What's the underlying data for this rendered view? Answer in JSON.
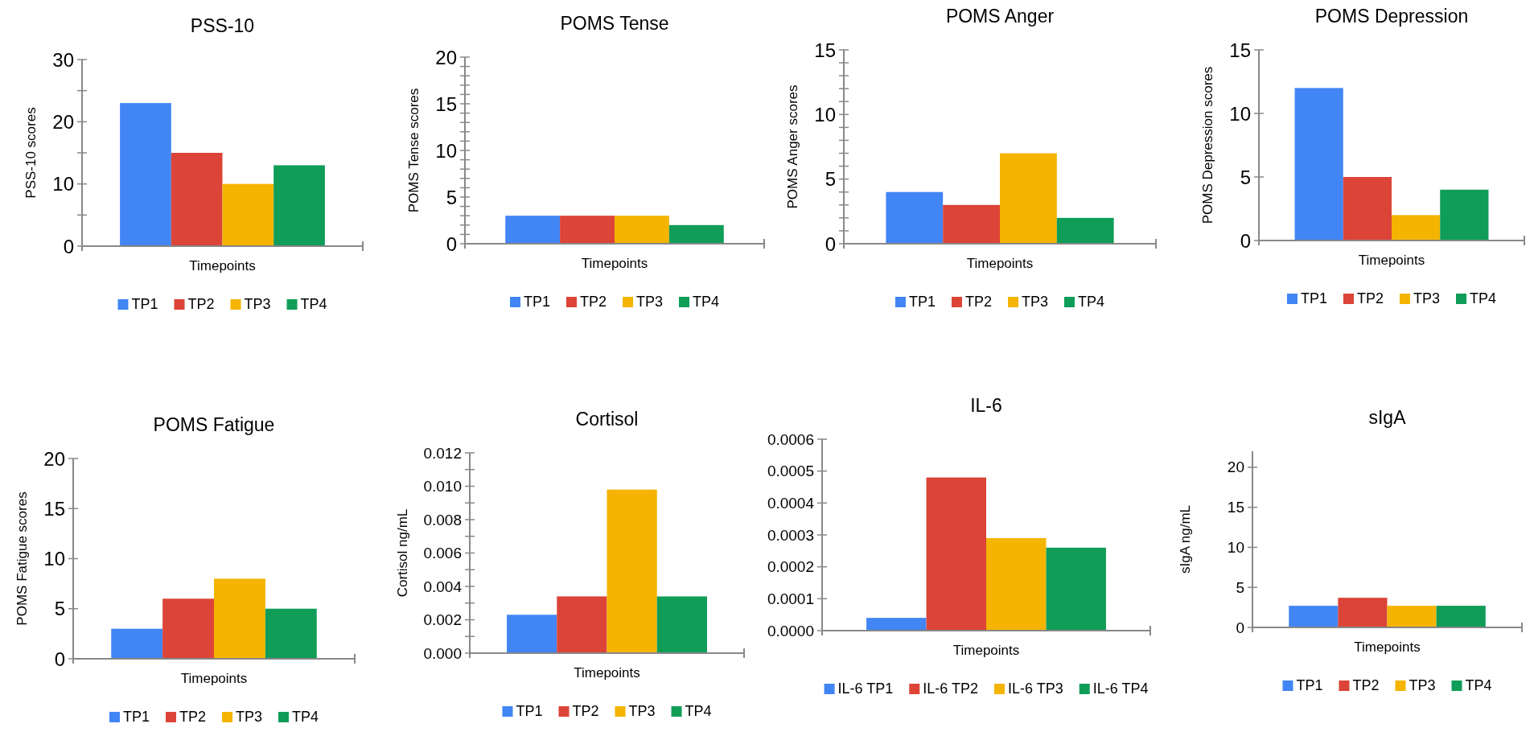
{
  "chart_data": [
    {
      "type": "bar",
      "title": "PSS-10",
      "ylabel": "PSS-10 scores",
      "xlabel": "Timepoints",
      "categories": [
        null
      ],
      "tick_labels": "y",
      "legend": "bottom",
      "grid": false,
      "ylim": [
        0,
        30
      ],
      "yticks": [
        0,
        {
          "value": 5,
          "label": null
        },
        10,
        {
          "value": 15,
          "label": null
        },
        20,
        {
          "value": 25,
          "label": null
        },
        30
      ],
      "series": [
        {
          "name": "TP1",
          "color": "#4285f4",
          "values": [
            23
          ]
        },
        {
          "name": "TP2",
          "color": "#db4437",
          "values": [
            15
          ]
        },
        {
          "name": "TP3",
          "color": "#f4b400",
          "values": [
            10
          ]
        },
        {
          "name": "TP4",
          "color": "#0f9d58",
          "values": [
            13
          ]
        }
      ]
    },
    {
      "type": "bar",
      "title": "POMS Tense",
      "ylabel": "POMS Tense scores",
      "xlabel": "Timepoints",
      "categories": [
        null
      ],
      "tick_labels": "y",
      "legend": "bottom",
      "grid": false,
      "ylim": [
        0,
        20
      ],
      "yticks": [
        0,
        {
          "value": 1,
          "label": null
        },
        {
          "value": 2,
          "label": null
        },
        {
          "value": 3,
          "label": null
        },
        {
          "value": 4,
          "label": null
        },
        5,
        {
          "value": 6,
          "label": null
        },
        {
          "value": 7,
          "label": null
        },
        {
          "value": 8,
          "label": null
        },
        {
          "value": 9,
          "label": null
        },
        10,
        {
          "value": 11,
          "label": null
        },
        {
          "value": 12,
          "label": null
        },
        {
          "value": 13,
          "label": null
        },
        {
          "value": 14,
          "label": null
        },
        15,
        {
          "value": 16,
          "label": null
        },
        {
          "value": 17,
          "label": null
        },
        {
          "value": 18,
          "label": null
        },
        {
          "value": 19,
          "label": null
        },
        20
      ],
      "series": [
        {
          "name": "TP1",
          "color": "#4285f4",
          "values": [
            3
          ]
        },
        {
          "name": "TP2",
          "color": "#db4437",
          "values": [
            3
          ]
        },
        {
          "name": "TP3",
          "color": "#f4b400",
          "values": [
            3
          ]
        },
        {
          "name": "TP4",
          "color": "#0f9d58",
          "values": [
            2
          ]
        }
      ]
    },
    {
      "type": "bar",
      "title": "POMS Anger",
      "ylabel": "POMS Anger scores",
      "xlabel": "Timepoints",
      "categories": [
        null
      ],
      "tick_labels": "y",
      "legend": "bottom",
      "grid": false,
      "ylim": [
        0,
        15
      ],
      "yticks": [
        0,
        {
          "value": 1,
          "label": null
        },
        {
          "value": 2,
          "label": null
        },
        {
          "value": 3,
          "label": null
        },
        {
          "value": 4,
          "label": null
        },
        5,
        {
          "value": 6,
          "label": null
        },
        {
          "value": 7,
          "label": null
        },
        {
          "value": 8,
          "label": null
        },
        {
          "value": 9,
          "label": null
        },
        10,
        {
          "value": 11,
          "label": null
        },
        {
          "value": 12,
          "label": null
        },
        {
          "value": 13,
          "label": null
        },
        {
          "value": 14,
          "label": null
        },
        15
      ],
      "series": [
        {
          "name": "TP1",
          "color": "#4285f4",
          "values": [
            4
          ]
        },
        {
          "name": "TP2",
          "color": "#db4437",
          "values": [
            3
          ]
        },
        {
          "name": "TP3",
          "color": "#f4b400",
          "values": [
            7
          ]
        },
        {
          "name": "TP4",
          "color": "#0f9d58",
          "values": [
            2
          ]
        }
      ]
    },
    {
      "type": "bar",
      "title": "POMS Depression",
      "ylabel": "POMS Depression scores",
      "xlabel": "Timepoints",
      "categories": [
        null
      ],
      "tick_labels": "y",
      "legend": "bottom",
      "grid": false,
      "ylim": [
        0,
        15
      ],
      "yticks": [
        0,
        5,
        10,
        15
      ],
      "series": [
        {
          "name": "TP1",
          "color": "#4285f4",
          "values": [
            12
          ]
        },
        {
          "name": "TP2",
          "color": "#db4437",
          "values": [
            5
          ]
        },
        {
          "name": "TP3",
          "color": "#f4b400",
          "values": [
            2
          ]
        },
        {
          "name": "TP4",
          "color": "#0f9d58",
          "values": [
            4
          ]
        }
      ]
    },
    {
      "type": "bar",
      "title": "POMS Fatigue",
      "ylabel": "POMS Fatigue scores",
      "xlabel": "Timepoints",
      "categories": [
        null
      ],
      "tick_labels": "y",
      "legend": "bottom",
      "grid": false,
      "ylim": [
        0,
        20
      ],
      "yticks": [
        0,
        5,
        10,
        15,
        20
      ],
      "series": [
        {
          "name": "TP1",
          "color": "#4285f4",
          "values": [
            3
          ]
        },
        {
          "name": "TP2",
          "color": "#db4437",
          "values": [
            6
          ]
        },
        {
          "name": "TP3",
          "color": "#f4b400",
          "values": [
            8
          ]
        },
        {
          "name": "TP4",
          "color": "#0f9d58",
          "values": [
            5
          ]
        }
      ]
    },
    {
      "type": "bar",
      "title": "Cortisol",
      "ylabel": "Cortisol ng/mL",
      "xlabel": "Timepoints",
      "categories": [
        null
      ],
      "tick_labels": "y",
      "legend": "bottom",
      "grid": false,
      "ylim": [
        0,
        0.012
      ],
      "yticks": [
        {
          "value": 0,
          "label": "0.000"
        },
        {
          "value": 0.001,
          "label": null
        },
        {
          "value": 0.002,
          "label": "0.002"
        },
        {
          "value": 0.003,
          "label": null
        },
        {
          "value": 0.004,
          "label": "0.004"
        },
        {
          "value": 0.005,
          "label": null
        },
        {
          "value": 0.006,
          "label": "0.006"
        },
        {
          "value": 0.007,
          "label": null
        },
        {
          "value": 0.008,
          "label": "0.008"
        },
        {
          "value": 0.009,
          "label": null
        },
        {
          "value": 0.01,
          "label": "0.010"
        },
        {
          "value": 0.011,
          "label": null
        },
        {
          "value": 0.012,
          "label": "0.012"
        }
      ],
      "series": [
        {
          "name": "TP1",
          "color": "#4285f4",
          "values": [
            0.0023
          ]
        },
        {
          "name": "TP2",
          "color": "#db4437",
          "values": [
            0.0034
          ]
        },
        {
          "name": "TP3",
          "color": "#f4b400",
          "values": [
            0.0098
          ]
        },
        {
          "name": "TP4",
          "color": "#0f9d58",
          "values": [
            0.0034
          ]
        }
      ]
    },
    {
      "type": "bar",
      "title": "IL-6",
      "xlabel": "Timepoints",
      "categories": [
        null
      ],
      "tick_labels": "y",
      "legend": "bottom",
      "grid": false,
      "ylim": [
        0,
        0.0006
      ],
      "yticks": [
        {
          "value": 0,
          "label": "0.0000"
        },
        {
          "value": 0.0001,
          "label": "0.0001"
        },
        {
          "value": 0.0002,
          "label": "0.0002"
        },
        {
          "value": 0.0003,
          "label": "0.0003"
        },
        {
          "value": 0.0004,
          "label": "0.0004"
        },
        {
          "value": 0.0005,
          "label": "0.0005"
        },
        {
          "value": 0.0006,
          "label": "0.0006"
        }
      ],
      "series": [
        {
          "name": "IL-6 TP1",
          "color": "#4285f4",
          "values": [
            4e-05
          ]
        },
        {
          "name": "IL-6 TP2",
          "color": "#db4437",
          "values": [
            0.00048
          ]
        },
        {
          "name": "IL-6 TP3",
          "color": "#f4b400",
          "values": [
            0.00029
          ]
        },
        {
          "name": "IL-6 TP4",
          "color": "#0f9d58",
          "values": [
            0.00026
          ]
        }
      ]
    },
    {
      "type": "bar",
      "title": "sIgA",
      "ylabel": "sIgA ng/mL",
      "xlabel": "Timepoints",
      "categories": [
        null
      ],
      "tick_labels": "y",
      "legend": "bottom",
      "grid": false,
      "ylim": [
        0,
        22
      ],
      "yticks": [
        0,
        5,
        10,
        15,
        20
      ],
      "series": [
        {
          "name": "TP1",
          "color": "#4285f4",
          "values": [
            2.7
          ]
        },
        {
          "name": "TP2",
          "color": "#db4437",
          "values": [
            3.7
          ]
        },
        {
          "name": "TP3",
          "color": "#f4b400",
          "values": [
            2.7
          ]
        },
        {
          "name": "TP4",
          "color": "#0f9d58",
          "values": [
            2.7
          ]
        }
      ]
    }
  ]
}
